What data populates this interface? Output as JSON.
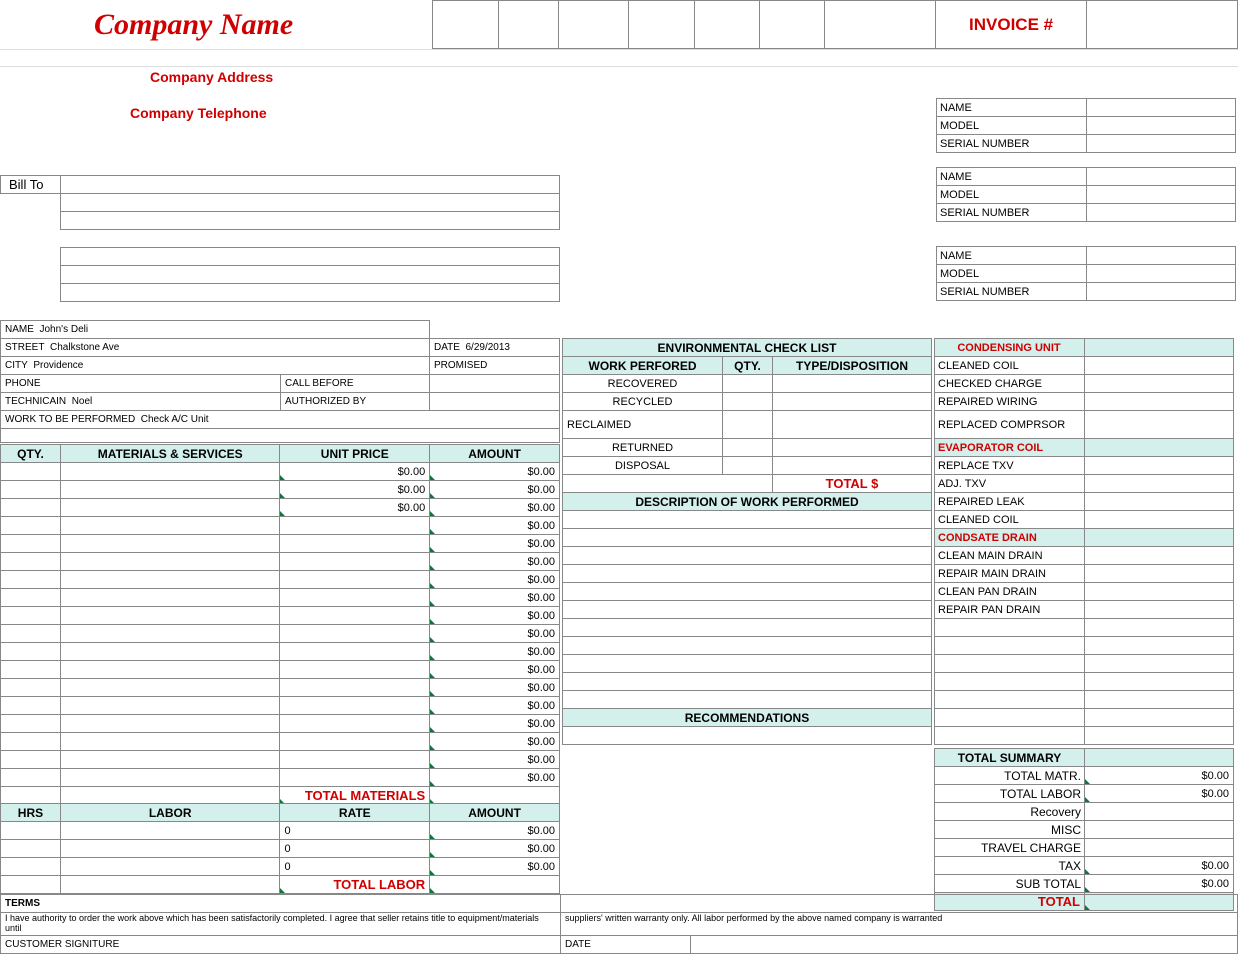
{
  "colors": {
    "red": "#d00000",
    "cyan_bg": "#d4f0ed",
    "green_tri": "#0a7a3a",
    "grid": "#888888"
  },
  "header": {
    "company_name": "Company Name",
    "company_address": "Company Address",
    "company_telephone": "Company Telephone",
    "invoice_label": "INVOICE #"
  },
  "equip_blocks": {
    "labels": [
      "NAME",
      "MODEL",
      "SERIAL NUMBER"
    ]
  },
  "billto": {
    "label": "Bill To"
  },
  "customer": {
    "name_lbl": "NAME",
    "name_val": "John's Deli",
    "street_lbl": "STREET",
    "street_val": "Chalkstone Ave",
    "city_lbl": "CITY",
    "city_val": "Providence",
    "phone_lbl": "PHONE",
    "tech_lbl": "TECHNICAIN",
    "tech_val": "Noel",
    "work_lbl": "WORK TO BE PERFORMED",
    "work_val": "Check A/C Unit",
    "date_lbl": "DATE",
    "date_val": "6/29/2013",
    "promised_lbl": "PROMISED",
    "callbefore_lbl": "CALL BEFORE",
    "authby_lbl": "AUTHORIZED BY"
  },
  "materials": {
    "headers": {
      "qty": "QTY.",
      "ms": "MATERIALS & SERVICES",
      "unit": "UNIT PRICE",
      "amount": "AMOUNT"
    },
    "rows": [
      {
        "unit": "$0.00",
        "amt": "$0.00"
      },
      {
        "unit": "$0.00",
        "amt": "$0.00"
      },
      {
        "unit": "$0.00",
        "amt": "$0.00"
      },
      {
        "unit": "",
        "amt": "$0.00"
      },
      {
        "unit": "",
        "amt": "$0.00"
      },
      {
        "unit": "",
        "amt": "$0.00"
      },
      {
        "unit": "",
        "amt": "$0.00"
      },
      {
        "unit": "",
        "amt": "$0.00"
      },
      {
        "unit": "",
        "amt": "$0.00"
      },
      {
        "unit": "",
        "amt": "$0.00"
      },
      {
        "unit": "",
        "amt": "$0.00"
      },
      {
        "unit": "",
        "amt": "$0.00"
      },
      {
        "unit": "",
        "amt": "$0.00"
      },
      {
        "unit": "",
        "amt": "$0.00"
      },
      {
        "unit": "",
        "amt": "$0.00"
      },
      {
        "unit": "",
        "amt": "$0.00"
      },
      {
        "unit": "",
        "amt": "$0.00"
      },
      {
        "unit": "",
        "amt": "$0.00"
      }
    ],
    "total_label": "TOTAL MATERIALS"
  },
  "labor": {
    "headers": {
      "hrs": "HRS",
      "lab": "LABOR",
      "rate": "RATE",
      "amount": "AMOUNT"
    },
    "rows": [
      {
        "rate": "0",
        "amt": "$0.00"
      },
      {
        "rate": "0",
        "amt": "$0.00"
      },
      {
        "rate": "0",
        "amt": "$0.00"
      }
    ],
    "total_label": "TOTAL LABOR"
  },
  "env": {
    "title": "ENVIRONMENTAL CHECK LIST",
    "cols": {
      "work": "WORK PERFORED",
      "qty": "QTY.",
      "type": "TYPE/DISPOSITION"
    },
    "rows": [
      "RECOVERED",
      "RECYCLED",
      "RECLAIMED",
      "RETURNED",
      "DISPOSAL"
    ],
    "total": "TOTAL $",
    "desc_hdr": "DESCRIPTION OF WORK PERFORMED",
    "reco_hdr": "RECOMMENDATIONS"
  },
  "checklist": {
    "cond_hdr": "CONDENSING UNIT",
    "cond": [
      "CLEANED COIL",
      "CHECKED CHARGE",
      "REPAIRED WIRING",
      "REPLACED COMPRSOR"
    ],
    "evap_hdr": "EVAPORATOR COIL",
    "evap": [
      "REPLACE TXV",
      "ADJ. TXV",
      "REPAIRED LEAK",
      "CLEANED COIL"
    ],
    "drain_hdr": "CONDSATE DRAIN",
    "drain": [
      "CLEAN MAIN DRAIN",
      "REPAIR MAIN DRAIN",
      "CLEAN PAN DRAIN",
      "REPAIR PAN DRAIN"
    ]
  },
  "summary": {
    "hdr": "TOTAL SUMMARY",
    "rows": [
      {
        "lbl": "TOTAL MATR.",
        "val": "$0.00"
      },
      {
        "lbl": "TOTAL LABOR",
        "val": "$0.00"
      },
      {
        "lbl": "Recovery",
        "val": ""
      },
      {
        "lbl": "MISC",
        "val": ""
      },
      {
        "lbl": "TRAVEL CHARGE",
        "val": ""
      },
      {
        "lbl": "TAX",
        "val": "$0.00"
      },
      {
        "lbl": "SUB TOTAL",
        "val": "$0.00"
      }
    ],
    "total_lbl": "TOTAL"
  },
  "terms": {
    "hdr": "TERMS",
    "text1": "I have authority to order the work above which has been satisfactorily completed. I agree that seller retains title to equipment/materials until",
    "text2": "suppliers' written warranty only. All labor performed by the above named company is warranted",
    "sig": "CUSTOMER SIGNITURE",
    "date": "DATE"
  }
}
